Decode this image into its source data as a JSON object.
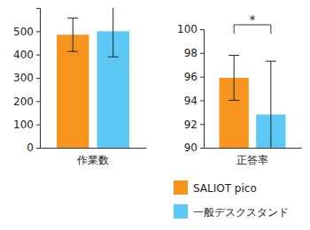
{
  "chart_data": [
    {
      "type": "bar",
      "x_label": "作業数",
      "categories": [
        null
      ],
      "ylim": [
        0,
        600
      ],
      "yticks": [
        0,
        100,
        200,
        300,
        400,
        500
      ],
      "series": [
        {
          "color": "#f7941d",
          "values": [
            485
          ],
          "errors": [
            72
          ]
        },
        {
          "color": "#5bc8f5",
          "values": [
            500
          ],
          "errors": [
            110
          ]
        }
      ]
    },
    {
      "type": "bar",
      "x_label": "正答率",
      "categories": [
        null
      ],
      "ylim": [
        90,
        100
      ],
      "yticks": [
        90,
        92,
        94,
        96,
        98,
        100
      ],
      "series": [
        {
          "name": "SALIOT pico",
          "color": "#f7941d",
          "values": [
            95.9
          ],
          "errors": [
            1.9
          ]
        },
        {
          "name": "一般デスクスタンド",
          "color": "#5bc8f5",
          "values": [
            92.8
          ],
          "errors": [
            4.5
          ]
        }
      ],
      "annotations": [
        {
          "text": "*",
          "between": [
            0,
            1
          ]
        }
      ]
    }
  ]
}
